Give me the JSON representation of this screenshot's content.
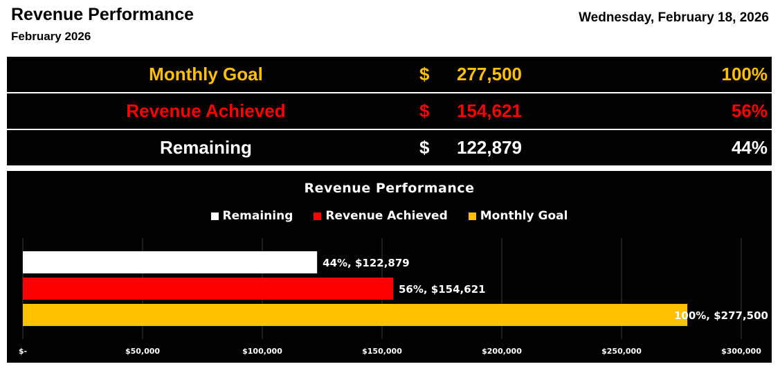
{
  "header": {
    "title": "Revenue Performance",
    "subtitle": "February 2026",
    "date": "Wednesday, February 18, 2026"
  },
  "summary": {
    "rows": [
      {
        "label": "Monthly Goal",
        "currency": "$",
        "amount": "277,500",
        "percent": "100%",
        "color": "#FFC000"
      },
      {
        "label": "Revenue Achieved",
        "currency": "$",
        "amount": "154,621",
        "percent": "56%",
        "color": "#FF0000"
      },
      {
        "label": "Remaining",
        "currency": "$",
        "amount": "122,879",
        "percent": "44%",
        "color": "#FFFFFF"
      }
    ]
  },
  "chart_data": {
    "type": "bar",
    "orientation": "horizontal",
    "title": "Revenue Performance",
    "categories": [
      "Remaining",
      "Revenue Achieved",
      "Monthly Goal"
    ],
    "values": [
      122879,
      154621,
      277500
    ],
    "data_labels": [
      "44%, $122,879",
      "56%, $154,621",
      "100%, $277,500"
    ],
    "colors": [
      "#FFFFFF",
      "#FF0000",
      "#FFC000"
    ],
    "legend": [
      "Remaining",
      "Revenue Achieved",
      "Monthly Goal"
    ],
    "legend_position": "top",
    "xlim": [
      0,
      300000
    ],
    "xticks": [
      0,
      50000,
      100000,
      150000,
      200000,
      250000,
      300000
    ],
    "xtick_labels": [
      "$-",
      "$50,000",
      "$100,000",
      "$150,000",
      "$200,000",
      "$250,000",
      "$300,000"
    ],
    "grid": true,
    "background": "#000000"
  }
}
